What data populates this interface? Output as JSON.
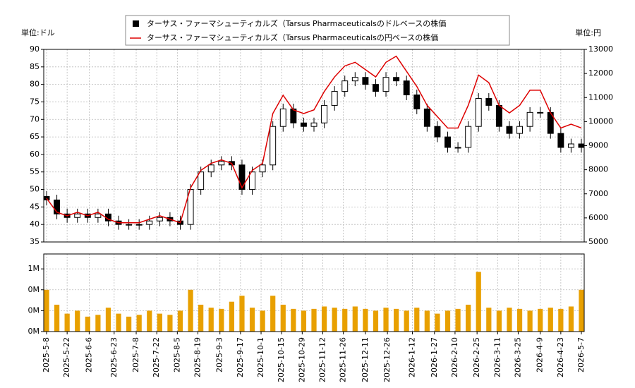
{
  "chart_data": [
    {
      "type": "candlestick",
      "legend": "top",
      "grid": true,
      "ylabel": "単位:ドル",
      "y2label": "単位:円",
      "x": [
        "2025-05-08",
        "2025-05-15",
        "2025-05-22",
        "2025-05-29",
        "2025-06-05",
        "2025-06-12",
        "2025-06-19",
        "2025-06-26",
        "2025-07-03",
        "2025-07-10",
        "2025-07-17",
        "2025-07-24",
        "2025-07-31",
        "2025-08-07",
        "2025-08-14",
        "2025-08-21",
        "2025-08-28",
        "2025-09-04",
        "2025-09-11",
        "2025-09-18",
        "2025-09-25",
        "2025-10-02",
        "2025-10-09",
        "2025-10-16",
        "2025-10-23",
        "2025-10-30",
        "2025-11-06",
        "2025-11-13",
        "2025-11-20",
        "2025-11-27",
        "2025-12-04",
        "2025-12-11",
        "2025-12-18",
        "2025-12-25",
        "2026-01-01",
        "2026-01-08",
        "2026-01-15",
        "2026-01-22",
        "2026-01-29",
        "2026-02-05",
        "2026-02-12",
        "2026-02-19",
        "2026-02-26",
        "2026-03-05",
        "2026-03-12",
        "2026-03-19",
        "2026-03-26",
        "2026-04-02",
        "2026-04-09",
        "2026-04-16",
        "2026-04-23",
        "2026-04-30",
        "2026-05-07"
      ],
      "xlim": [
        "2025-05-08",
        "2026-05-07"
      ],
      "ylim": [
        35,
        90
      ],
      "yticks": [
        35,
        40,
        45,
        50,
        55,
        60,
        65,
        70,
        75,
        80,
        85,
        90
      ],
      "y2lim": [
        5000,
        13000
      ],
      "y2ticks": [
        5000,
        6000,
        7000,
        8000,
        9000,
        10000,
        11000,
        12000,
        13000
      ],
      "series": [
        {
          "name": "ターサス・ファーマシューティカルズ（Tarsus Pharmaceuticalsのドルベースの株価",
          "color": "#000000",
          "open": [
            48,
            47,
            43,
            42,
            43,
            42,
            43,
            41,
            40,
            40,
            40,
            41,
            42,
            41,
            40,
            50,
            55,
            57,
            58,
            57,
            50,
            55,
            57,
            68,
            73,
            69,
            68,
            69,
            74,
            78,
            81,
            82,
            80,
            78,
            82,
            81,
            77,
            73,
            68,
            65,
            62,
            62,
            68,
            76,
            74,
            68,
            66,
            68,
            72,
            72,
            66,
            62,
            63
          ],
          "high": [
            49.5,
            48.5,
            44.5,
            44.5,
            44.5,
            44.5,
            44.5,
            42.5,
            41.5,
            41.5,
            42.5,
            43.5,
            43.5,
            42.5,
            51.5,
            56.5,
            58.5,
            59.5,
            59.5,
            58.5,
            56.5,
            58.5,
            69.5,
            74.5,
            74.5,
            70.5,
            70.5,
            75.5,
            79.5,
            82.5,
            83.5,
            83.5,
            81.5,
            83.5,
            83.5,
            82.5,
            78.5,
            74.5,
            69.5,
            66.5,
            63.5,
            69.5,
            77.5,
            77.5,
            75.5,
            69.5,
            69.5,
            73.5,
            73.5,
            73.5,
            67.5,
            64.5,
            64.5
          ],
          "low": [
            45.5,
            41.5,
            40.5,
            40.5,
            40.5,
            40.5,
            39.5,
            38.5,
            38.5,
            38.5,
            38.5,
            39.5,
            39.5,
            38.5,
            38.5,
            48.5,
            53.5,
            55.5,
            55.5,
            48.5,
            48.5,
            53.5,
            55.5,
            66.5,
            67.5,
            66.5,
            66.5,
            67.5,
            72.5,
            76.5,
            79.5,
            78.5,
            76.5,
            76.5,
            79.5,
            75.5,
            71.5,
            66.5,
            63.5,
            60.5,
            60.5,
            60.5,
            66.5,
            72.5,
            66.5,
            64.5,
            64.5,
            66.5,
            70.5,
            64.5,
            60.5,
            60.5,
            60.5
          ],
          "close": [
            47,
            43,
            42,
            43,
            42,
            43,
            41,
            40,
            40,
            40,
            41,
            42,
            41,
            40,
            50,
            55,
            57,
            58,
            57,
            50,
            55,
            57,
            68,
            73,
            69,
            68,
            69,
            74,
            78,
            81,
            82,
            80,
            78,
            82,
            81,
            77,
            73,
            68,
            65,
            62,
            62,
            68,
            76,
            74,
            68,
            66,
            68,
            72,
            72,
            66,
            62,
            63,
            62
          ]
        },
        {
          "name": "ターサス・ファーマシューティカルズ（Tarsus Pharmaceuticalsの円ベースの株価",
          "color": "#dd0000",
          "axis": "y2",
          "values": [
            6815,
            6235,
            6090,
            6235,
            6090,
            6235,
            5945,
            5800,
            5800,
            5800,
            5945,
            6090,
            5945,
            5800,
            7250,
            7975,
            8265,
            8410,
            8265,
            7250,
            7975,
            8265,
            10336,
            11096,
            10488,
            10336,
            10488,
            11248,
            11856,
            12312,
            12464,
            12160,
            11856,
            12464,
            12717,
            12089,
            11461,
            10676,
            10205,
            9734,
            9734,
            10676,
            11932,
            11618,
            10676,
            10362,
            10676,
            11304,
            11304,
            10362,
            9734,
            9891,
            9734
          ]
        }
      ]
    },
    {
      "type": "bar",
      "color": "#e8a000",
      "grid": true,
      "x": [
        "2025-05-08",
        "2025-05-15",
        "2025-05-22",
        "2025-05-29",
        "2025-06-05",
        "2025-06-12",
        "2025-06-19",
        "2025-06-26",
        "2025-07-03",
        "2025-07-10",
        "2025-07-17",
        "2025-07-24",
        "2025-07-31",
        "2025-08-07",
        "2025-08-14",
        "2025-08-21",
        "2025-08-28",
        "2025-09-04",
        "2025-09-11",
        "2025-09-18",
        "2025-09-25",
        "2025-10-02",
        "2025-10-09",
        "2025-10-16",
        "2025-10-23",
        "2025-10-30",
        "2025-11-06",
        "2025-11-13",
        "2025-11-20",
        "2025-11-27",
        "2025-12-04",
        "2025-12-11",
        "2025-12-18",
        "2025-12-25",
        "2026-01-01",
        "2026-01-08",
        "2026-01-15",
        "2026-01-22",
        "2026-01-29",
        "2026-02-05",
        "2026-02-12",
        "2026-02-19",
        "2026-02-26",
        "2026-03-05",
        "2026-03-12",
        "2026-03-19",
        "2026-03-26",
        "2026-04-02",
        "2026-04-09",
        "2026-04-16",
        "2026-04-23",
        "2026-04-30",
        "2026-05-07"
      ],
      "xlim": [
        "2025-05-08",
        "2026-05-07"
      ],
      "xticks": [
        {
          "value": "2025-05-08",
          "label": "2025-5-8"
        },
        {
          "value": "2025-05-22",
          "label": "2025-5-22"
        },
        {
          "value": "2025-06-06",
          "label": "2025-6-6"
        },
        {
          "value": "2025-06-23",
          "label": "2025-6-23"
        },
        {
          "value": "2025-07-08",
          "label": "2025-7-8"
        },
        {
          "value": "2025-07-22",
          "label": "2025-7-22"
        },
        {
          "value": "2025-08-05",
          "label": "2025-8-5"
        },
        {
          "value": "2025-08-19",
          "label": "2025-8-19"
        },
        {
          "value": "2025-09-03",
          "label": "2025-9-3"
        },
        {
          "value": "2025-09-17",
          "label": "2025-9-17"
        },
        {
          "value": "2025-10-01",
          "label": "2025-10-1"
        },
        {
          "value": "2025-10-15",
          "label": "2025-10-15"
        },
        {
          "value": "2025-10-29",
          "label": "2025-10-29"
        },
        {
          "value": "2025-11-12",
          "label": "2025-11-12"
        },
        {
          "value": "2025-11-26",
          "label": "2025-11-26"
        },
        {
          "value": "2025-12-11",
          "label": "2025-12-11"
        },
        {
          "value": "2025-12-26",
          "label": "2025-12-26"
        },
        {
          "value": "2026-01-12",
          "label": "2026-1-12"
        },
        {
          "value": "2026-01-27",
          "label": "2026-1-27"
        },
        {
          "value": "2026-02-10",
          "label": "2026-2-10"
        },
        {
          "value": "2026-02-25",
          "label": "2026-2-25"
        },
        {
          "value": "2026-03-11",
          "label": "2026-3-11"
        },
        {
          "value": "2026-03-25",
          "label": "2026-3-25"
        },
        {
          "value": "2026-04-09",
          "label": "2026-4-9"
        },
        {
          "value": "2026-04-23",
          "label": "2026-4-23"
        },
        {
          "value": "2026-05-07",
          "label": "2026-5-7"
        }
      ],
      "ylim": [
        0,
        1300000
      ],
      "yticks": [
        {
          "value": 0,
          "label": "0M"
        },
        {
          "value": 350000,
          "label": "0M"
        },
        {
          "value": 700000,
          "label": "0M"
        },
        {
          "value": 1050000,
          "label": "1M"
        }
      ],
      "values": [
        700000,
        450000,
        300000,
        350000,
        250000,
        280000,
        400000,
        300000,
        250000,
        280000,
        350000,
        300000,
        280000,
        350000,
        700000,
        450000,
        400000,
        380000,
        500000,
        600000,
        400000,
        350000,
        600000,
        450000,
        380000,
        350000,
        380000,
        420000,
        400000,
        380000,
        420000,
        380000,
        350000,
        400000,
        380000,
        350000,
        400000,
        350000,
        300000,
        350000,
        380000,
        450000,
        1000000,
        400000,
        350000,
        400000,
        380000,
        350000,
        380000,
        400000,
        380000,
        420000,
        700000
      ]
    }
  ]
}
